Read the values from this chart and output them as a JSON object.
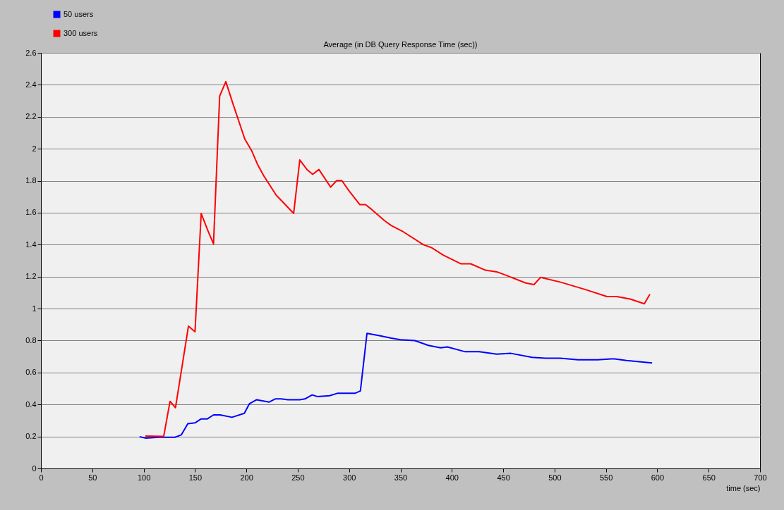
{
  "chart_data": {
    "type": "line",
    "title": "Average (in DB Query Response Time (sec))",
    "xlabel": "time (sec)",
    "xlim": [
      0,
      700
    ],
    "xticks": [
      0,
      50,
      100,
      150,
      200,
      250,
      300,
      350,
      400,
      450,
      500,
      550,
      600,
      650,
      700
    ],
    "ylim": [
      0,
      2.6
    ],
    "yticks": [
      0,
      0.2,
      0.4,
      0.6,
      0.8,
      1,
      1.2,
      1.4,
      1.6,
      1.8,
      2,
      2.2,
      2.4,
      2.6
    ],
    "grid": "y",
    "legend": "top left",
    "marker": "none",
    "line_style": "solid",
    "series": [
      {
        "name": "50 users",
        "color": "#0000ff",
        "x": [
          96,
          101.7,
          114.7,
          130.5,
          136.7,
          143,
          150,
          156,
          162,
          168,
          174.5,
          186,
          198,
          203,
          210,
          222,
          228,
          234,
          240.4,
          246.6,
          252,
          257,
          264,
          269,
          281,
          288.5,
          305.7,
          311,
          317.4,
          330.4,
          341,
          350,
          364,
          377,
          389,
          395.7,
          413,
          426.6,
          443.8,
          457.5,
          478,
          491,
          505.6,
          522.8,
          542,
          555,
          558.5,
          570,
          595
        ],
        "values": [
          0.198,
          0.19,
          0.195,
          0.195,
          0.21,
          0.28,
          0.285,
          0.31,
          0.31,
          0.335,
          0.335,
          0.32,
          0.345,
          0.405,
          0.43,
          0.415,
          0.435,
          0.435,
          0.43,
          0.43,
          0.43,
          0.435,
          0.46,
          0.45,
          0.455,
          0.47,
          0.47,
          0.485,
          0.845,
          0.83,
          0.815,
          0.805,
          0.8,
          0.77,
          0.755,
          0.76,
          0.73,
          0.73,
          0.715,
          0.72,
          0.695,
          0.69,
          0.69,
          0.68,
          0.68,
          0.685,
          0.685,
          0.675,
          0.66
        ]
      },
      {
        "name": "300 users",
        "color": "#ff0000",
        "x": [
          101.7,
          119.5,
          125.7,
          131,
          143.6,
          150,
          156,
          163,
          168,
          174,
          180,
          187,
          198.5,
          205,
          211,
          217,
          229,
          235,
          246,
          252,
          259,
          264.5,
          270.6,
          282,
          287.8,
          293,
          299.5,
          310.5,
          316,
          322,
          334.5,
          341,
          351.6,
          372.3,
          380.6,
          391.6,
          409,
          418.4,
          432.8,
          443.8,
          452,
          472,
          480,
          486.4,
          506,
          529.6,
          551,
          560.5,
          573.6,
          587.4,
          592.8
        ],
        "values": [
          0.203,
          0.2,
          0.42,
          0.38,
          0.89,
          0.855,
          1.595,
          1.48,
          1.405,
          2.33,
          2.42,
          2.28,
          2.06,
          1.99,
          1.9,
          1.83,
          1.71,
          1.67,
          1.595,
          1.93,
          1.87,
          1.84,
          1.87,
          1.76,
          1.8,
          1.8,
          1.74,
          1.65,
          1.65,
          1.62,
          1.55,
          1.52,
          1.485,
          1.4,
          1.38,
          1.335,
          1.28,
          1.28,
          1.24,
          1.23,
          1.21,
          1.16,
          1.15,
          1.195,
          1.165,
          1.12,
          1.075,
          1.075,
          1.06,
          1.03,
          1.09
        ]
      }
    ]
  }
}
